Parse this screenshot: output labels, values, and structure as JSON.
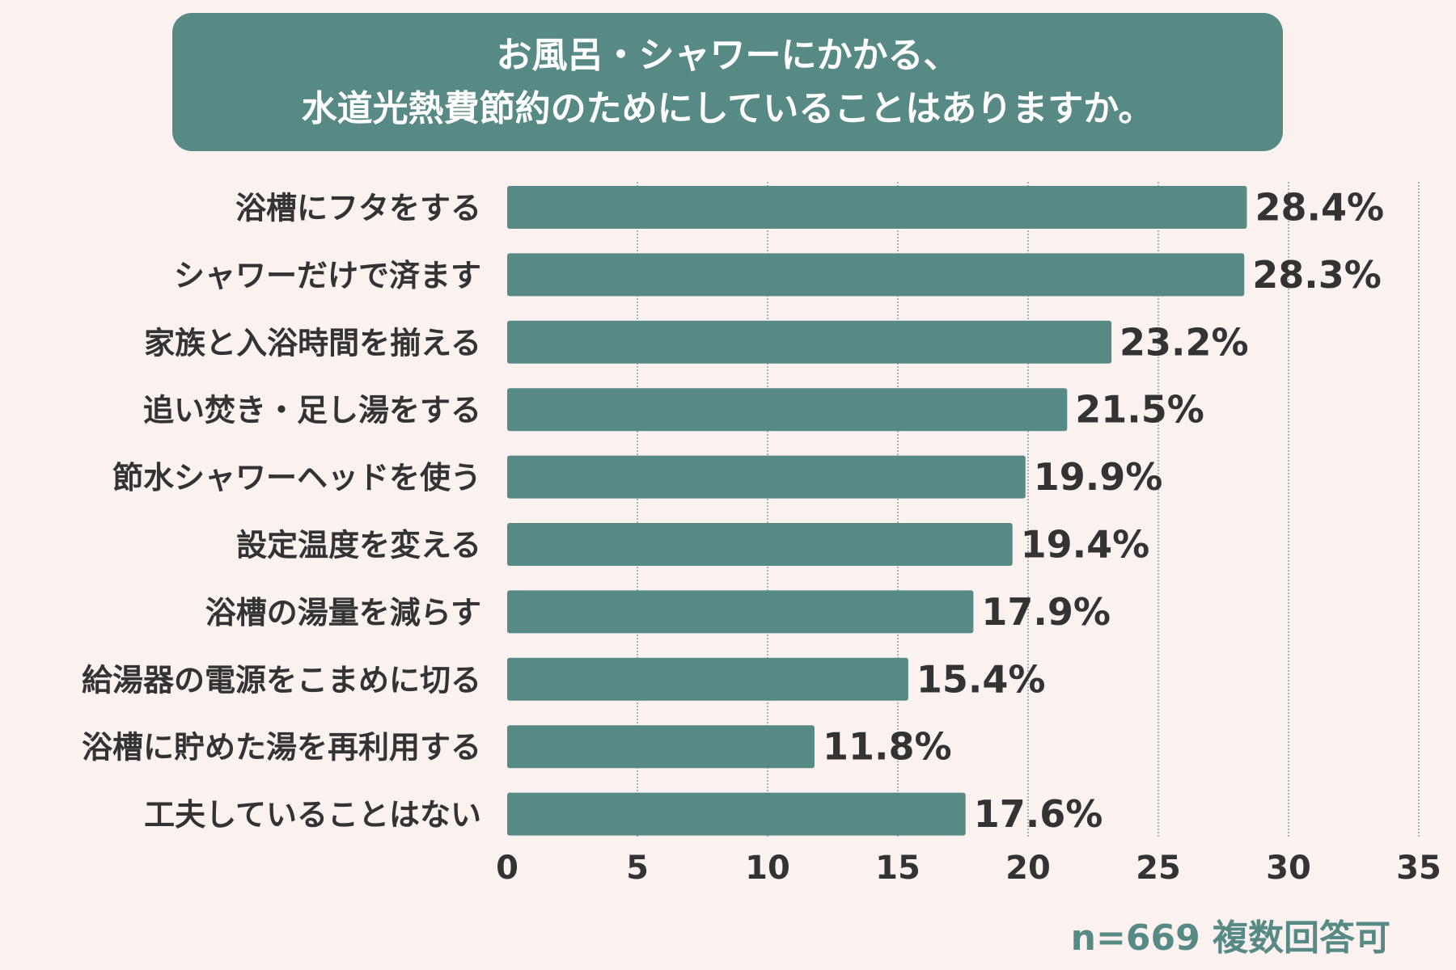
{
  "title_lines": [
    "お風呂・シャワーにかかる、",
    "水道光熱費節約のためにしていることはありますか。"
  ],
  "note": "n=669 複数回答可",
  "colors": {
    "bar": "#578a84",
    "background": "#fbf1ef",
    "text": "#333333",
    "title_bg": "#578a84"
  },
  "chart_data": {
    "type": "bar",
    "orientation": "horizontal",
    "categories": [
      "浴槽にフタをする",
      "シャワーだけで済ます",
      "家族と入浴時間を揃える",
      "追い焚き・足し湯をする",
      "節水シャワーヘッドを使う",
      "設定温度を変える",
      "浴槽の湯量を減らす",
      "給湯器の電源をこまめに切る",
      "浴槽に貯めた湯を再利用する",
      "工夫していることはない"
    ],
    "values": [
      28.4,
      28.3,
      23.2,
      21.5,
      19.9,
      19.4,
      17.9,
      15.4,
      11.8,
      17.6
    ],
    "data_labels": [
      "28.4%",
      "28.3%",
      "23.2%",
      "21.5%",
      "19.9%",
      "19.4%",
      "17.9%",
      "15.4%",
      "11.8%",
      "17.6%"
    ],
    "xlim": [
      0,
      35
    ],
    "xticks": [
      "0",
      "5",
      "10",
      "15",
      "20",
      "25",
      "30",
      "35"
    ],
    "grid": true,
    "title": "お風呂・シャワーにかかる、水道光熱費節約のためにしていることはありますか。"
  }
}
